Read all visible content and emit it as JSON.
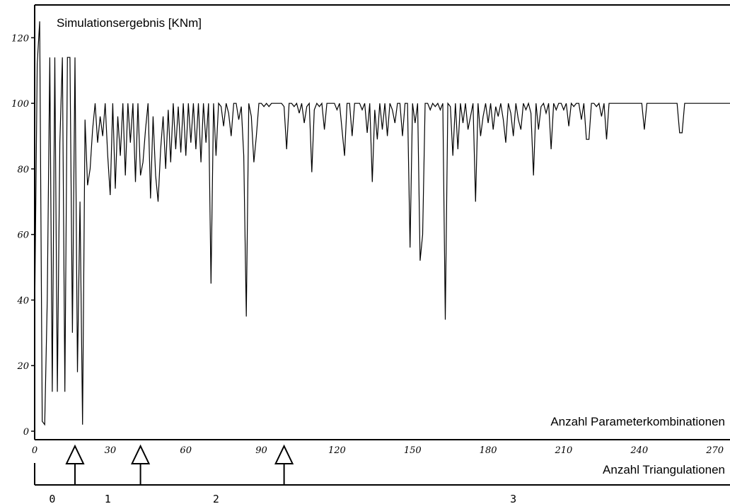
{
  "chart_data": {
    "type": "line",
    "title": "Simulationsergebnis  [KNm]",
    "xlabel": "Anzahl Parameterkombinationen",
    "xlim": [
      0,
      276
    ],
    "ylim": [
      0,
      130
    ],
    "x_ticks": [
      "0",
      "30",
      "60",
      "90",
      "120",
      "150",
      "180",
      "210",
      "240",
      "270"
    ],
    "y_ticks": [
      "0",
      "20",
      "40",
      "60",
      "80",
      "100",
      "120"
    ],
    "grid": false,
    "legend": "none",
    "line_color": "#000000",
    "series": [
      {
        "x": [
          0,
          1,
          2,
          3,
          4,
          5,
          6,
          7,
          8,
          9,
          10,
          11,
          12,
          13,
          14,
          15,
          16,
          17,
          18,
          19,
          20,
          21,
          22,
          23,
          24,
          25,
          26,
          27,
          28,
          29,
          30,
          31,
          32,
          33,
          34,
          35,
          36,
          37,
          38,
          39,
          40,
          41,
          42,
          43,
          44,
          45,
          46,
          47,
          48,
          49,
          50,
          51,
          52,
          53,
          54,
          55,
          56,
          57,
          58,
          59,
          60,
          61,
          62,
          63,
          64,
          65,
          66,
          67,
          68,
          69,
          70,
          71,
          72,
          73,
          74,
          75,
          76,
          77,
          78,
          79,
          80,
          81,
          82,
          83,
          84,
          85,
          86,
          87,
          88,
          89,
          90,
          91,
          92,
          93,
          94,
          95,
          96,
          97,
          98,
          99,
          100,
          101,
          102,
          103,
          104,
          105,
          106,
          107,
          108,
          109,
          110,
          111,
          112,
          113,
          114,
          115,
          116,
          117,
          118,
          119,
          120,
          121,
          122,
          123,
          124,
          125,
          126,
          127,
          128,
          129,
          130,
          131,
          132,
          133,
          134,
          135,
          136,
          137,
          138,
          139,
          140,
          141,
          142,
          143,
          144,
          145,
          146,
          147,
          148,
          149,
          150,
          151,
          152,
          153,
          154,
          155,
          156,
          157,
          158,
          159,
          160,
          161,
          162,
          163,
          164,
          165,
          166,
          167,
          168,
          169,
          170,
          171,
          172,
          173,
          174,
          175,
          176,
          177,
          178,
          179,
          180,
          181,
          182,
          183,
          184,
          185,
          186,
          187,
          188,
          189,
          190,
          191,
          192,
          193,
          194,
          195,
          196,
          197,
          198,
          199,
          200,
          201,
          202,
          203,
          204,
          205,
          206,
          207,
          208,
          209,
          210,
          211,
          212,
          213,
          214,
          215,
          216,
          217,
          218,
          219,
          220,
          221,
          222,
          223,
          224,
          225,
          226,
          227,
          228,
          229,
          230,
          231,
          232,
          233,
          234,
          235,
          236,
          237,
          238,
          239,
          240,
          241,
          242,
          243,
          244,
          245,
          246,
          247,
          248,
          249,
          250,
          251,
          252,
          253,
          254,
          255,
          256,
          257,
          258,
          259,
          260,
          261,
          262,
          263,
          264,
          265,
          266,
          267,
          268,
          269,
          270,
          271,
          272,
          273,
          274,
          275,
          276
        ],
        "y": [
          35,
          112,
          125,
          3,
          2,
          40,
          114,
          12,
          114,
          12,
          88,
          114,
          12,
          114,
          114,
          30,
          114,
          18,
          70,
          2,
          95,
          75,
          80,
          92,
          100,
          88,
          96,
          90,
          100,
          84,
          72,
          100,
          74,
          96,
          84,
          100,
          78,
          100,
          88,
          100,
          76,
          100,
          78,
          82,
          92,
          100,
          71,
          96,
          78,
          70,
          86,
          96,
          80,
          98,
          82,
          100,
          86,
          99,
          85,
          100,
          84,
          100,
          88,
          100,
          86,
          100,
          82,
          100,
          88,
          100,
          45,
          100,
          84,
          100,
          99,
          93,
          100,
          97,
          90,
          100,
          100,
          95,
          99,
          84,
          35,
          100,
          96,
          82,
          90,
          100,
          100,
          99,
          100,
          99,
          100,
          100,
          100,
          100,
          100,
          99,
          86,
          100,
          100,
          99,
          100,
          97,
          100,
          94,
          99,
          100,
          79,
          98,
          100,
          99,
          100,
          92,
          100,
          100,
          100,
          100,
          98,
          100,
          92,
          84,
          100,
          100,
          90,
          100,
          100,
          100,
          98,
          100,
          91,
          100,
          76,
          98,
          89,
          100,
          92,
          100,
          90,
          100,
          98,
          94,
          100,
          100,
          90,
          100,
          100,
          56,
          100,
          94,
          100,
          52,
          60,
          100,
          100,
          98,
          100,
          99,
          100,
          98,
          100,
          34,
          100,
          99,
          84,
          100,
          86,
          100,
          94,
          100,
          92,
          96,
          100,
          70,
          100,
          90,
          96,
          100,
          94,
          100,
          92,
          99,
          96,
          100,
          95,
          88,
          100,
          97,
          90,
          100,
          95,
          92,
          100,
          98,
          100,
          97,
          78,
          100,
          92,
          99,
          100,
          97,
          100,
          86,
          100,
          98,
          100,
          100,
          98,
          100,
          93,
          100,
          99,
          100,
          100,
          95,
          100,
          89,
          89,
          100,
          100,
          99,
          100,
          96,
          100,
          89,
          100,
          100,
          100,
          100,
          100,
          100,
          100,
          100,
          100,
          100,
          100,
          100,
          100,
          100,
          92,
          100,
          100,
          100,
          100,
          100,
          100,
          100,
          100,
          100,
          100,
          100,
          100,
          100,
          91,
          91,
          100,
          100,
          100,
          100,
          100,
          100,
          100,
          100,
          100,
          100,
          100,
          100,
          100,
          100,
          100,
          100,
          100,
          100,
          100
        ]
      }
    ],
    "markers": {
      "label": "Anzahl Triangulationen",
      "x": [
        16,
        42,
        99
      ]
    },
    "segments": {
      "labels": [
        "0",
        "1",
        "2",
        "3"
      ],
      "x": [
        7,
        29,
        72,
        190
      ]
    }
  }
}
